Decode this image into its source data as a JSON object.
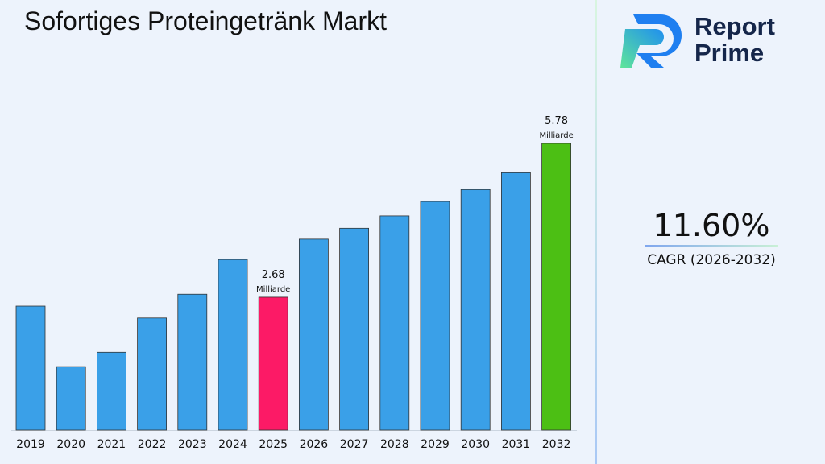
{
  "title": "Sofortiges Proteingetränk Markt",
  "logo": {
    "line1": "Report",
    "line2": "Prime"
  },
  "cagr": {
    "value": "11.60%",
    "label": "CAGR (2026-2032)"
  },
  "chart_data": {
    "type": "bar",
    "categories": [
      "2019",
      "2020",
      "2021",
      "2022",
      "2023",
      "2024",
      "2025",
      "2026",
      "2027",
      "2028",
      "2029",
      "2030",
      "2031",
      "2032"
    ],
    "values": [
      2.5,
      1.28,
      1.57,
      2.26,
      2.74,
      3.44,
      2.68,
      3.85,
      4.07,
      4.32,
      4.61,
      4.85,
      5.19,
      5.78
    ],
    "ylim": [
      0,
      6.2
    ],
    "grid": false,
    "colors": {
      "default": "#3aa0e8",
      "highlight_2025": "#fc1a66",
      "highlight_2032": "#4cbf14"
    },
    "data_labels": [
      {
        "category": "2025",
        "value": "2.68",
        "unit": "Milliarde"
      },
      {
        "category": "2032",
        "value": "5.78",
        "unit": "Milliarde"
      }
    ]
  }
}
